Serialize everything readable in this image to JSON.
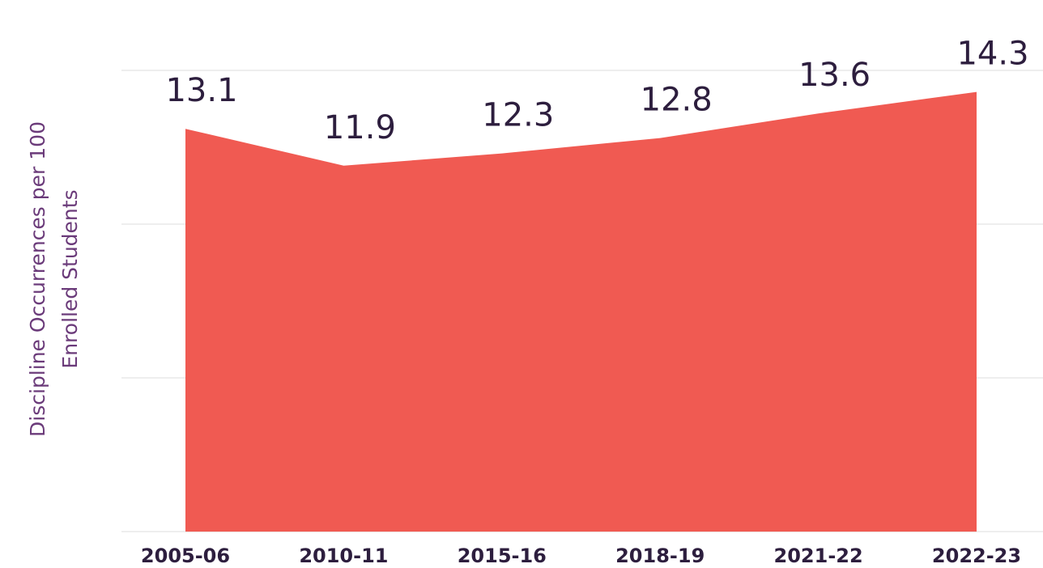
{
  "chart_data": {
    "type": "area",
    "y_label": [
      "Discipline Occurrences per 100",
      "Enrolled Students"
    ],
    "categories": [
      "2005-06",
      "2010-11",
      "2015-16",
      "2018-19",
      "2021-22",
      "2022-23"
    ],
    "values": [
      13.1,
      11.9,
      12.3,
      12.8,
      13.6,
      14.3
    ],
    "color": "#f05a52",
    "ylim": [
      0,
      15
    ],
    "yticks": [
      0,
      5,
      10,
      15
    ],
    "grid": true
  }
}
